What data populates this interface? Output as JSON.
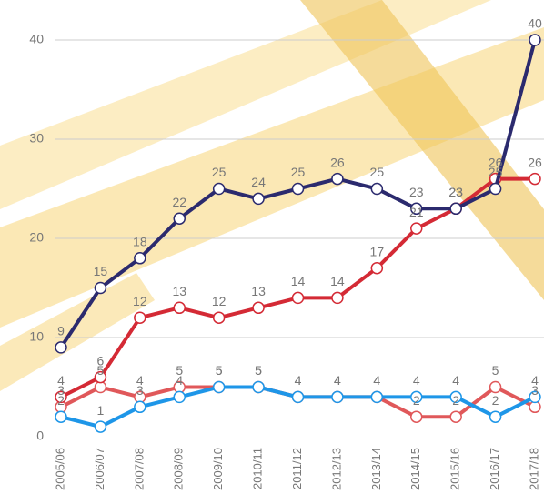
{
  "chart_data": {
    "type": "line",
    "categories": [
      "2005/06",
      "2006/07",
      "2007/08",
      "2008/09",
      "2009/10",
      "2010/11",
      "2011/12",
      "2012/13",
      "2013/14",
      "2014/15",
      "2015/16",
      "2016/17",
      "2017/18"
    ],
    "series": [
      {
        "color": "#e0585a",
        "values": [
          3,
          5,
          4,
          5,
          5,
          5,
          4,
          4,
          4,
          2,
          2,
          5,
          3
        ]
      },
      {
        "color": "#1e96e8",
        "values": [
          2,
          1,
          3,
          4,
          5,
          5,
          4,
          4,
          4,
          4,
          4,
          2,
          4
        ]
      },
      {
        "color": "#d42a35",
        "values": [
          4,
          6,
          12,
          13,
          12,
          13,
          14,
          14,
          17,
          21,
          23,
          26,
          26
        ]
      },
      {
        "color": "#2b2a6e",
        "values": [
          9,
          15,
          18,
          22,
          25,
          24,
          25,
          26,
          25,
          23,
          23,
          25,
          40
        ]
      }
    ],
    "ylim": [
      0,
      40
    ],
    "yticks": [
      0,
      10,
      20,
      30,
      40
    ],
    "grid": true
  }
}
